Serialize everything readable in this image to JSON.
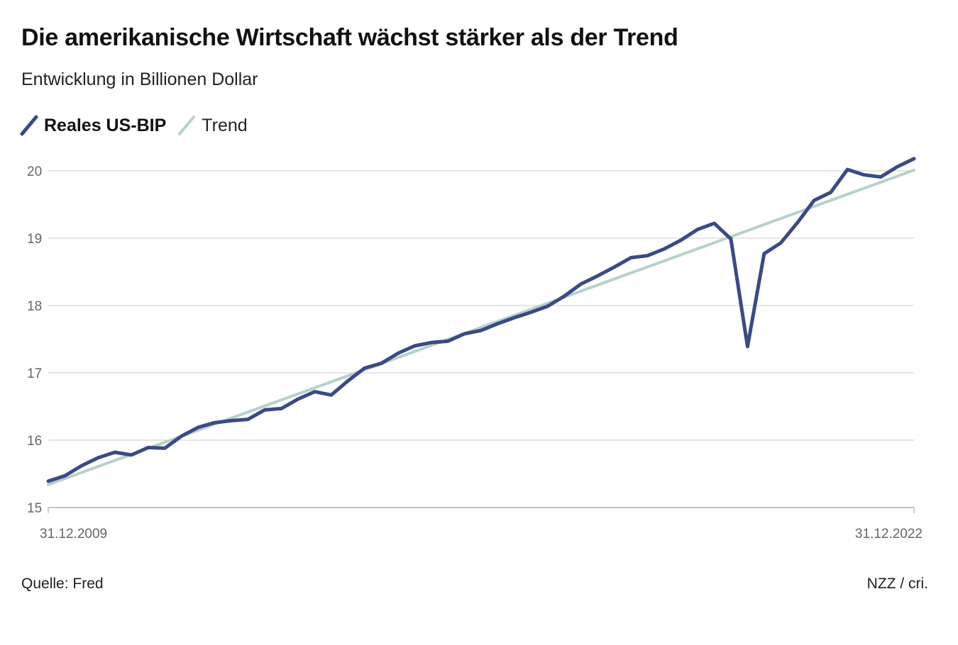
{
  "chart_data": {
    "type": "line",
    "title": "Die amerikanische Wirtschaft wächst stärker als der Trend",
    "subtitle": "Entwicklung in Billionen Dollar",
    "xlabel": "",
    "ylabel": "",
    "x_start_label": "31.12.2009",
    "x_end_label": "31.12.2022",
    "ylim": [
      15,
      20.2
    ],
    "yticks": [
      15,
      16,
      17,
      18,
      19,
      20
    ],
    "grid": true,
    "legend_position": "top-left",
    "series": [
      {
        "name": "Reales US-BIP",
        "color": "#3a4a85",
        "values": [
          15.39,
          15.47,
          15.62,
          15.74,
          15.82,
          15.78,
          15.89,
          15.88,
          16.06,
          16.19,
          16.26,
          16.29,
          16.31,
          16.45,
          16.47,
          16.61,
          16.72,
          16.67,
          16.88,
          17.07,
          17.14,
          17.29,
          17.4,
          17.45,
          17.47,
          17.58,
          17.63,
          17.73,
          17.82,
          17.9,
          17.99,
          18.14,
          18.32,
          18.44,
          18.57,
          18.71,
          18.74,
          18.84,
          18.97,
          19.13,
          19.22,
          18.99,
          17.39,
          18.77,
          18.93,
          19.23,
          19.56,
          19.68,
          20.02,
          19.94,
          19.91,
          20.06,
          20.18
        ]
      },
      {
        "name": "Trend",
        "color": "#b6d1cb",
        "start": 15.34,
        "end": 20.01
      }
    ]
  },
  "source": "Quelle: Fred",
  "credit": "NZZ / cri."
}
